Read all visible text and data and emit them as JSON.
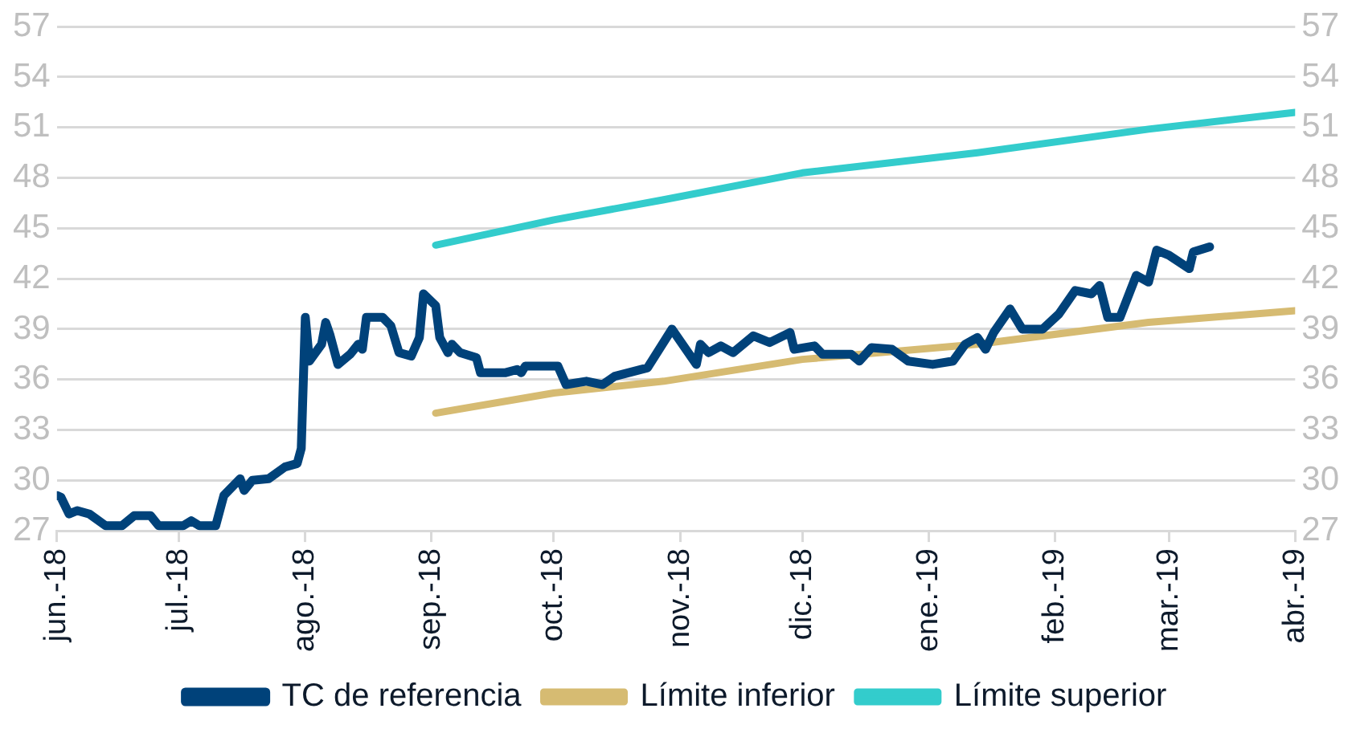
{
  "chart_data": {
    "type": "line",
    "legend": "bottom",
    "grid": "y",
    "xlim": [
      "2018-06-01",
      "2019-04-01"
    ],
    "xticks": [
      {
        "value": "2018-06-01",
        "label": "jun.-18"
      },
      {
        "value": "2018-07-01",
        "label": "jul.-18"
      },
      {
        "value": "2018-08-01",
        "label": "ago.-18"
      },
      {
        "value": "2018-09-01",
        "label": "sep.-18"
      },
      {
        "value": "2018-10-01",
        "label": "oct.-18"
      },
      {
        "value": "2018-11-01",
        "label": "nov.-18"
      },
      {
        "value": "2018-12-01",
        "label": "dic.-18"
      },
      {
        "value": "2019-01-01",
        "label": "ene.-19"
      },
      {
        "value": "2019-02-01",
        "label": "feb.-19"
      },
      {
        "value": "2019-03-01",
        "label": "mar.-19"
      },
      {
        "value": "2019-04-01",
        "label": "abr.-19"
      }
    ],
    "ylim": [
      27,
      57
    ],
    "yticks": [
      27,
      30,
      33,
      36,
      39,
      42,
      45,
      48,
      51,
      54,
      57
    ],
    "y2lim": [
      27,
      57
    ],
    "y2ticks": [
      27,
      30,
      33,
      36,
      39,
      42,
      45,
      48,
      51,
      54,
      57
    ],
    "series": [
      {
        "name": "TC de referencia",
        "color": "#00427a",
        "x": [
          "2018-06-01",
          "2018-06-02",
          "2018-06-04",
          "2018-06-06",
          "2018-06-09",
          "2018-06-13",
          "2018-06-17",
          "2018-06-20",
          "2018-06-24",
          "2018-06-26",
          "2018-07-02",
          "2018-07-04",
          "2018-07-06",
          "2018-07-10",
          "2018-07-12",
          "2018-07-16",
          "2018-07-17",
          "2018-07-19",
          "2018-07-23",
          "2018-07-27",
          "2018-07-30",
          "2018-07-31",
          "2018-08-01",
          "2018-08-02",
          "2018-08-05",
          "2018-08-06",
          "2018-08-07",
          "2018-08-09",
          "2018-08-12",
          "2018-08-14",
          "2018-08-15",
          "2018-08-16",
          "2018-08-20",
          "2018-08-22",
          "2018-08-24",
          "2018-08-27",
          "2018-08-29",
          "2018-08-30",
          "2018-09-02",
          "2018-09-03",
          "2018-09-05",
          "2018-09-06",
          "2018-09-08",
          "2018-09-12",
          "2018-09-13",
          "2018-09-19",
          "2018-09-22",
          "2018-09-23",
          "2018-09-24",
          "2018-10-02",
          "2018-10-04",
          "2018-10-09",
          "2018-10-13",
          "2018-10-16",
          "2018-10-24",
          "2018-10-30",
          "2018-11-05",
          "2018-11-06",
          "2018-11-08",
          "2018-11-11",
          "2018-11-14",
          "2018-11-19",
          "2018-11-23",
          "2018-11-28",
          "2018-11-29",
          "2018-12-04",
          "2018-12-06",
          "2018-12-13",
          "2018-12-15",
          "2018-12-18",
          "2018-12-23",
          "2018-12-27",
          "2019-01-02",
          "2019-01-07",
          "2019-01-10",
          "2019-01-13",
          "2019-01-15",
          "2019-01-17",
          "2019-01-21",
          "2019-01-24",
          "2019-01-29",
          "2019-02-02",
          "2019-02-06",
          "2019-02-10",
          "2019-02-12",
          "2019-02-14",
          "2019-02-17",
          "2019-02-21",
          "2019-02-24",
          "2019-02-26",
          "2019-03-01",
          "2019-03-06",
          "2019-03-07",
          "2019-03-11"
        ],
        "values": [
          29.1,
          29.0,
          28.0,
          28.2,
          28.0,
          27.3,
          27.3,
          27.9,
          27.9,
          27.3,
          27.3,
          27.6,
          27.3,
          27.3,
          29.1,
          30.1,
          29.4,
          30.0,
          30.1,
          30.8,
          31.0,
          31.9,
          39.7,
          37.1,
          38.1,
          39.4,
          38.7,
          36.9,
          37.5,
          38.1,
          37.8,
          39.7,
          39.7,
          39.2,
          37.6,
          37.4,
          38.5,
          41.1,
          40.4,
          38.5,
          37.6,
          38.1,
          37.6,
          37.3,
          36.4,
          36.4,
          36.6,
          36.4,
          36.8,
          36.8,
          35.7,
          35.9,
          35.7,
          36.2,
          36.7,
          39.0,
          36.9,
          38.1,
          37.6,
          38.0,
          37.6,
          38.6,
          38.2,
          38.8,
          37.8,
          38.0,
          37.5,
          37.5,
          37.1,
          37.9,
          37.8,
          37.1,
          36.9,
          37.1,
          38.1,
          38.5,
          37.8,
          38.8,
          40.2,
          39.0,
          39.0,
          39.9,
          41.3,
          41.1,
          41.6,
          39.7,
          39.7,
          42.2,
          41.8,
          43.7,
          43.4,
          42.6,
          43.6,
          43.9
        ]
      },
      {
        "name": "Límite inferior",
        "color": "#d6bb72",
        "x": [
          "2018-09-02",
          "2018-10-01",
          "2018-10-28",
          "2018-12-01",
          "2019-01-13",
          "2019-02-24",
          "2019-04-01"
        ],
        "values": [
          34.0,
          35.2,
          35.9,
          37.2,
          38.1,
          39.4,
          40.1
        ]
      },
      {
        "name": "Límite superior",
        "color": "#33cccc",
        "x": [
          "2018-09-02",
          "2018-10-01",
          "2018-10-28",
          "2018-12-01",
          "2019-01-13",
          "2019-02-24",
          "2019-04-01"
        ],
        "values": [
          44.0,
          45.5,
          46.7,
          48.3,
          49.5,
          50.9,
          51.9
        ]
      }
    ]
  }
}
